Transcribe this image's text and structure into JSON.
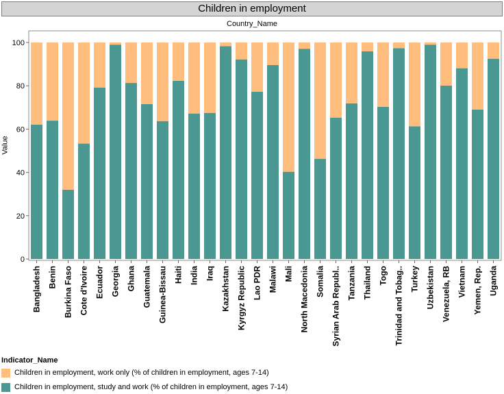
{
  "title": "Children in employment",
  "chart_data": {
    "type": "bar",
    "stacked": true,
    "header": "Country_Name",
    "ylabel": "Value",
    "ylim": [
      0,
      100
    ],
    "yticks": [
      0,
      20,
      40,
      60,
      80,
      100
    ],
    "grid": false,
    "legend_placement": "bottom-left",
    "legend_title": "Indicator_Name",
    "categories": [
      "Bangladesh",
      "Benin",
      "Burkina Faso",
      "Cote d'Ivoire",
      "Ecuador",
      "Georgia",
      "Ghana",
      "Guatemala",
      "Guinea-Bissau",
      "Haiti",
      "India",
      "Iraq",
      "Kazakhstan",
      "Kyrgyz Republic",
      "Lao PDR",
      "Malawi",
      "Mali",
      "North Macedonia",
      "Somalia",
      "Syrian Arab Republ..",
      "Tanzania",
      "Thailand",
      "Togo",
      "Trinidad and Tobag..",
      "Turkey",
      "Uzbekistan",
      "Venezuela, RB",
      "Vietnam",
      "Yemen, Rep.",
      "Uganda"
    ],
    "series": [
      {
        "name": "Children in employment, study and work (% of children in employment, ages 7-14)",
        "color": "#4a9891",
        "values": [
          62.1,
          63.9,
          32.0,
          53.3,
          79.2,
          99.0,
          81.3,
          71.6,
          63.7,
          82.3,
          67.2,
          67.5,
          98.3,
          92.2,
          77.3,
          89.6,
          40.3,
          97.1,
          46.3,
          65.3,
          71.9,
          95.9,
          70.3,
          97.4,
          61.3,
          99.0,
          80.1,
          88.1,
          69.0,
          92.5
        ]
      },
      {
        "name": "Children in employment, work only (% of children in employment, ages 7-14)",
        "color": "#ffbe7d",
        "values": [
          37.9,
          36.1,
          68.0,
          46.7,
          20.8,
          1.0,
          18.7,
          28.4,
          36.3,
          17.7,
          32.8,
          32.5,
          1.7,
          7.8,
          22.7,
          10.4,
          59.7,
          2.9,
          53.7,
          34.7,
          28.1,
          4.1,
          29.7,
          2.6,
          38.7,
          1.0,
          19.9,
          11.9,
          31.0,
          7.5
        ]
      }
    ]
  }
}
